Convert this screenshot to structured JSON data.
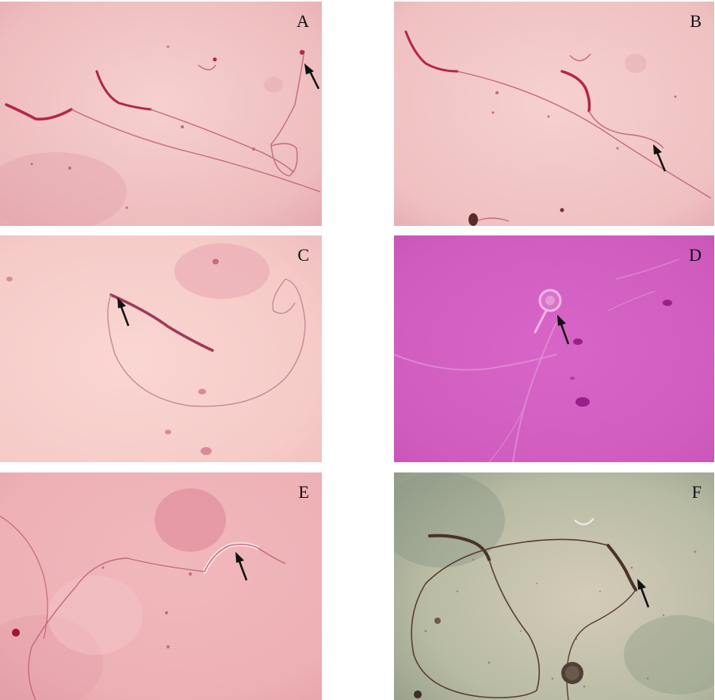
{
  "panels": [
    {
      "id": "a",
      "label": "A"
    },
    {
      "id": "b",
      "label": "B"
    },
    {
      "id": "c",
      "label": "C"
    },
    {
      "id": "d",
      "label": "D"
    },
    {
      "id": "e",
      "label": "E"
    },
    {
      "id": "f",
      "label": "F"
    }
  ],
  "colors": {
    "pink_background": "#f3c6c6",
    "magenta_background": "#d25fc5",
    "greenish_background": "#aeb89f",
    "stain_red": "#b02a4e",
    "arrow": "#111111"
  }
}
